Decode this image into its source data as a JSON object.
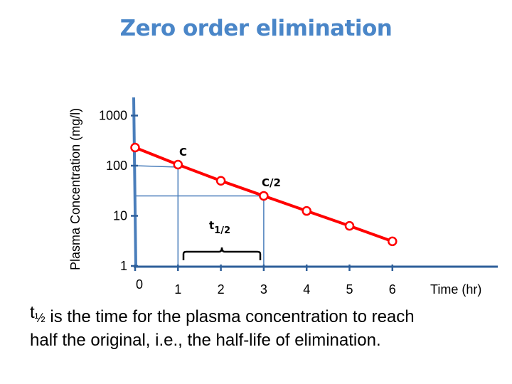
{
  "title": "Zero order elimination",
  "chart_data": {
    "type": "line",
    "title": "Zero order elimination",
    "xlabel": "Time (hr)",
    "ylabel": "Plasma Concentration (mg/l)",
    "yscale": "log",
    "ylim": [
      1,
      1000
    ],
    "xlim": [
      0,
      6
    ],
    "x_ticks": [
      "0",
      "1",
      "2",
      "3",
      "4",
      "5",
      "6"
    ],
    "y_ticks": [
      "1",
      "10",
      "100",
      "1000"
    ],
    "x": [
      0,
      1,
      2,
      3,
      4,
      5,
      6
    ],
    "values": [
      230,
      105,
      50,
      25,
      12.5,
      6.3,
      3.1
    ],
    "color": "#ff0000",
    "axis_color": "#4a7ebb",
    "grid": false,
    "annotations": {
      "c": "C",
      "c_half": "C/2",
      "t_half_main": "t",
      "t_half_sub": "1/2"
    }
  },
  "caption": {
    "t": "t",
    "sub": "½",
    "line1_rest": " is the time for the plasma concentration to reach",
    "line2": "half the original, i.e., the half-life of elimination."
  }
}
